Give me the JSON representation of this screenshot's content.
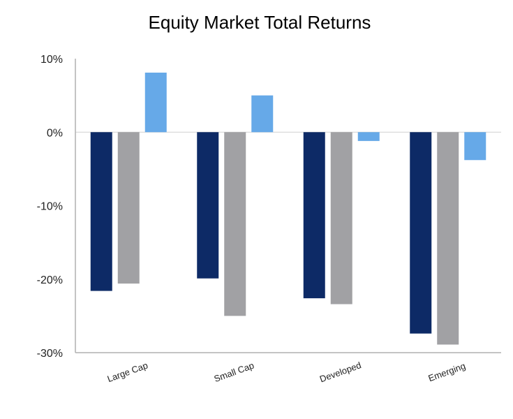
{
  "chart_data": {
    "type": "bar",
    "title": "Equity Market Total Returns",
    "categories": [
      "Large Cap",
      "Small Cap",
      "Developed",
      "Emerging"
    ],
    "series": [
      {
        "values": [
          -21.6,
          -19.9,
          -22.6,
          -27.4
        ],
        "color": "#0d2a66"
      },
      {
        "values": [
          -20.6,
          -25.0,
          -23.4,
          -28.9
        ],
        "color": "#a1a1a4"
      },
      {
        "values": [
          8.1,
          5.0,
          -1.2,
          -3.8
        ],
        "color": "#66a9e8"
      }
    ],
    "ylim": [
      -30,
      10
    ],
    "yticks": [
      10,
      0,
      -10,
      -20,
      -30
    ],
    "ytick_labels": [
      "10%",
      "0%",
      "-10%",
      "-20%",
      "-30%"
    ],
    "xlabel": "",
    "ylabel": "",
    "grid": false,
    "legend": "none"
  }
}
